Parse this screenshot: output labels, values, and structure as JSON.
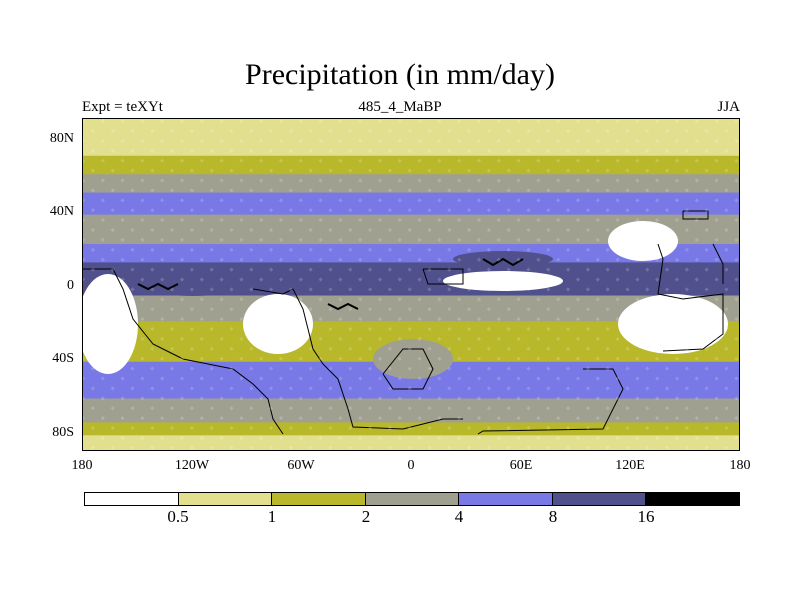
{
  "title": "Precipitation (in mm/day)",
  "subtitle_left": "Expt = teXYt",
  "subtitle_center": "485_4_MaBP",
  "subtitle_right": "JJA",
  "y_ticks": [
    "80N",
    "40N",
    "0",
    "40S",
    "80S"
  ],
  "x_ticks": [
    "180",
    "120W",
    "60W",
    "0",
    "60E",
    "120E",
    "180"
  ],
  "colorbar": {
    "colors": [
      "#ffffff",
      "#e2e08e",
      "#b8b82a",
      "#a0a090",
      "#7878e6",
      "#50508c",
      "#000000"
    ],
    "labels": [
      "0.5",
      "1",
      "2",
      "4",
      "8",
      "16"
    ]
  },
  "map_bands": [
    {
      "lat_from": 90,
      "lat_to": 70,
      "level": 1
    },
    {
      "lat_from": 70,
      "lat_to": 60,
      "level": 2
    },
    {
      "lat_from": 60,
      "lat_to": 50,
      "level": 3
    },
    {
      "lat_from": 50,
      "lat_to": 38,
      "level": 4
    },
    {
      "lat_from": 38,
      "lat_to": 22,
      "level": 3
    },
    {
      "lat_from": 22,
      "lat_to": 12,
      "level": 4
    },
    {
      "lat_from": 12,
      "lat_to": -6,
      "level": 5
    },
    {
      "lat_from": -6,
      "lat_to": -20,
      "level": 3
    },
    {
      "lat_from": -20,
      "lat_to": -42,
      "level": 2
    },
    {
      "lat_from": -42,
      "lat_to": -62,
      "level": 4
    },
    {
      "lat_from": -62,
      "lat_to": -75,
      "level": 3
    },
    {
      "lat_from": -75,
      "lat_to": -82,
      "level": 2
    },
    {
      "lat_from": -82,
      "lat_to": -90,
      "level": 1
    }
  ]
}
